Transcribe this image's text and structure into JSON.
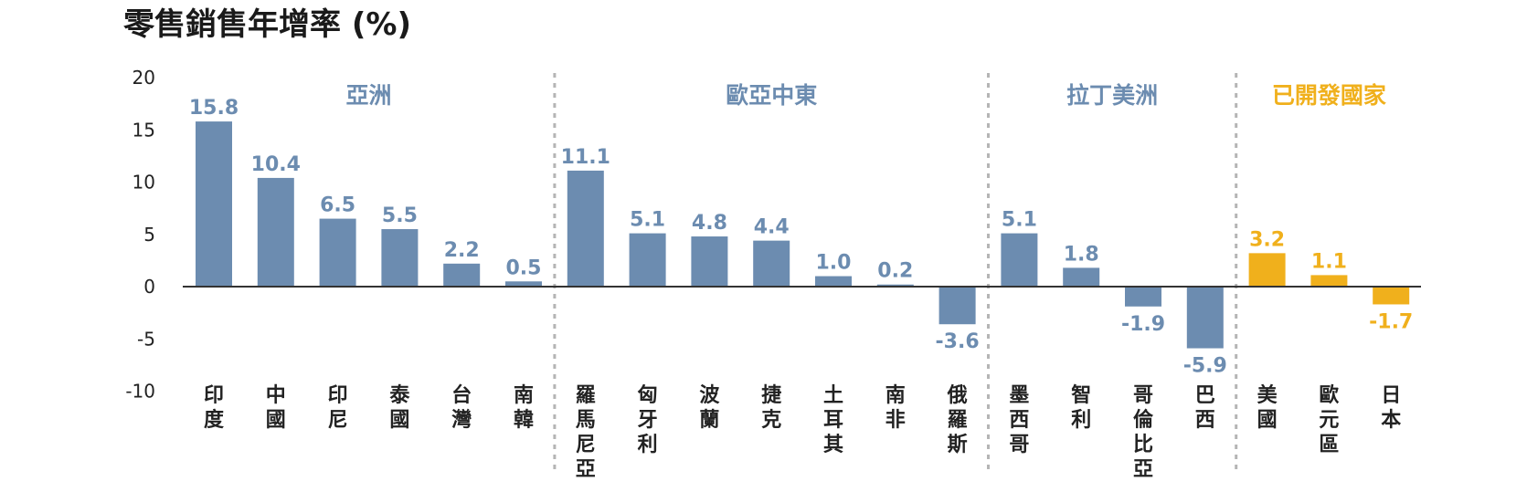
{
  "title": "零售銷售年增率 (%)",
  "colors": {
    "emerging": "#6c8cb0",
    "developed": "#f0b01c",
    "axis": "#333333",
    "divider": "#b5b5b5"
  },
  "chart_data": {
    "type": "bar",
    "title": "零售銷售年增率 (%)",
    "ylim": [
      -10,
      20
    ],
    "yticks": [
      20,
      15,
      10,
      5,
      0,
      -5,
      -10
    ],
    "grid": false,
    "groups": [
      {
        "name": "亞洲",
        "color": "#6c8cb0",
        "categories": [
          "印度",
          "中國",
          "印尼",
          "泰國",
          "台灣",
          "南韓"
        ],
        "values": [
          15.8,
          10.4,
          6.5,
          5.5,
          2.2,
          0.5
        ]
      },
      {
        "name": "歐亞中東",
        "color": "#6c8cb0",
        "categories": [
          "羅馬尼亞",
          "匈牙利",
          "波蘭",
          "捷克",
          "土耳其",
          "南非",
          "俄羅斯"
        ],
        "values": [
          11.1,
          5.1,
          4.8,
          4.4,
          1.0,
          0.2,
          -3.6
        ]
      },
      {
        "name": "拉丁美洲",
        "color": "#6c8cb0",
        "categories": [
          "墨西哥",
          "智利",
          "哥倫比亞",
          "巴西"
        ],
        "values": [
          5.1,
          1.8,
          -1.9,
          -5.9
        ]
      },
      {
        "name": "已開發國家",
        "color": "#f0b01c",
        "categories": [
          "美國",
          "歐元區",
          "日本"
        ],
        "values": [
          3.2,
          1.1,
          -1.7
        ]
      }
    ]
  }
}
